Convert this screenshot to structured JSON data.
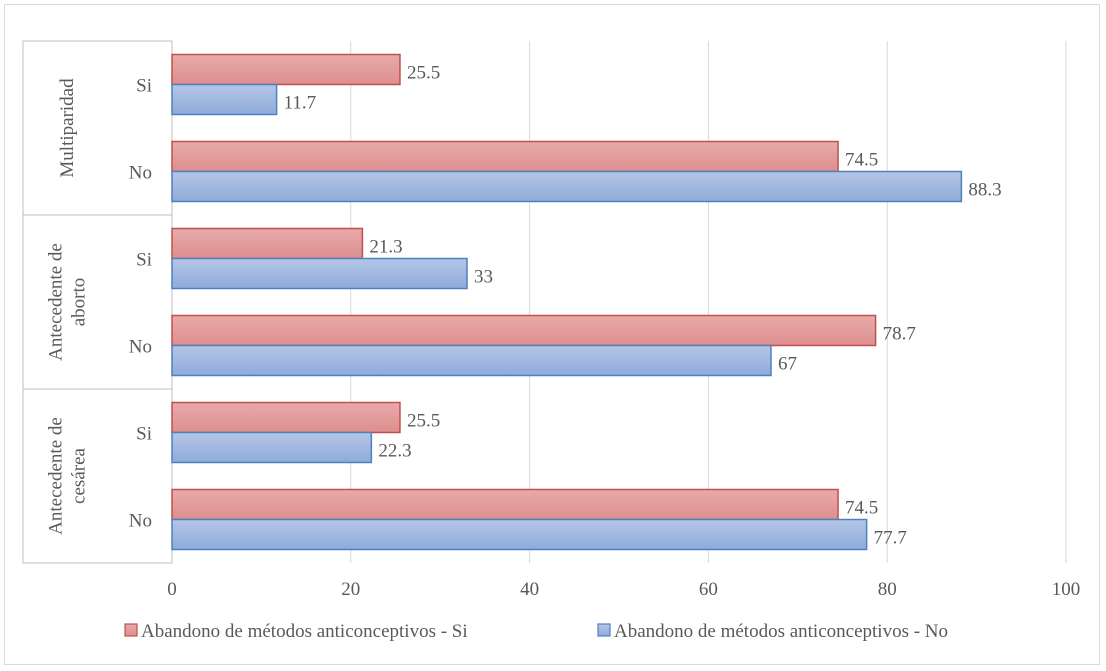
{
  "chart_data": {
    "type": "bar",
    "orientation": "horizontal",
    "title": "",
    "xlabel": "",
    "ylabel": "",
    "xlim": [
      0,
      100
    ],
    "xticks": [
      0,
      20,
      40,
      60,
      80,
      100
    ],
    "grid": true,
    "legend_position": "bottom",
    "groups": [
      {
        "label": "Multiparidad",
        "categories": [
          "Si",
          "No"
        ]
      },
      {
        "label": "Antecedente de aborto",
        "label_lines": [
          "Antecedente de",
          "aborto"
        ],
        "categories": [
          "Si",
          "No"
        ]
      },
      {
        "label": "Antecedente de cesárea",
        "label_lines": [
          "Antecedente de",
          "cesárea"
        ],
        "categories": [
          "Si",
          "No"
        ]
      }
    ],
    "series": [
      {
        "name": "Abandono de métodos anticonceptivos - Si",
        "color": "#e6a1a1",
        "border_color": "#c0504d",
        "values": [
          25.5,
          74.5,
          21.3,
          78.7,
          25.5,
          74.5
        ],
        "labels": [
          "25.5",
          "74.5",
          "21.3",
          "78.7",
          "25.5",
          "74.5"
        ]
      },
      {
        "name": "Abandono de métodos anticonceptivos - No",
        "color": "#9fb6de",
        "border_color": "#4f81bd",
        "values": [
          11.7,
          88.3,
          33,
          67,
          22.3,
          77.7
        ],
        "labels": [
          "11.7",
          "88.3",
          "33",
          "67",
          "22.3",
          "77.7"
        ]
      }
    ]
  }
}
